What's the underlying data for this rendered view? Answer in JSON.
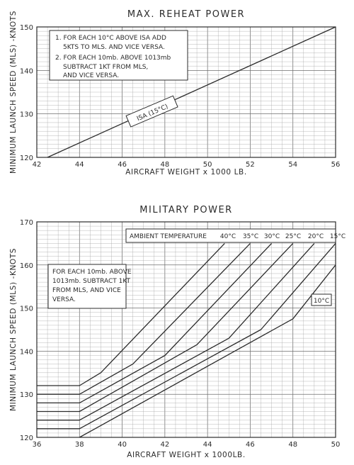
{
  "chart_data": [
    {
      "type": "line",
      "title": "MAX. REHEAT POWER",
      "xlabel": "AIRCRAFT WEIGHT x 1000 LB.",
      "ylabel": "MINIMUM LAUNCH SPEED (MLS) -KNOTS",
      "xlim": [
        42,
        56
      ],
      "ylim": [
        120,
        150
      ],
      "x_ticks": [
        "42",
        "44",
        "46",
        "48",
        "50",
        "52",
        "54",
        "56"
      ],
      "y_ticks": [
        "120",
        "130",
        "140",
        "150"
      ],
      "grid": true,
      "notes": [
        "1. FOR EACH 10°C ABOVE ISA ADD",
        "5KTS TO MLS. AND VICE VERSA.",
        "2. FOR EACH 10mb. ABOVE 1013mb",
        "SUBTRACT 1KT FROM MLS,",
        "AND VICE VERSA."
      ],
      "series": [
        {
          "name": "ISA (15°C)",
          "x": [
            42.5,
            56
          ],
          "y": [
            120,
            150
          ]
        }
      ]
    },
    {
      "type": "line",
      "title": "MILITARY POWER",
      "xlabel": "AIRCRAFT WEIGHT x 1000LB.",
      "ylabel": "MINIMUM LAUNCH SPEED (MLS) -KNOTS",
      "xlim": [
        36,
        50
      ],
      "ylim": [
        120,
        170
      ],
      "x_ticks": [
        "36",
        "38",
        "40",
        "42",
        "44",
        "46",
        "48",
        "50"
      ],
      "y_ticks": [
        "120",
        "130",
        "140",
        "150",
        "160",
        "170"
      ],
      "grid": true,
      "legend_title": "AMBIENT TEMPERATURE",
      "notes": [
        "FOR EACH 10mb. ABOVE",
        "1013mb. SUBTRACT 1KT",
        "FROM MLS, AND VICE",
        "VERSA."
      ],
      "series": [
        {
          "name": "40°C",
          "x": [
            36,
            38,
            39,
            44.8
          ],
          "y": [
            132,
            132,
            135,
            165
          ]
        },
        {
          "name": "35°C",
          "x": [
            36,
            38,
            40.5,
            46
          ],
          "y": [
            130,
            130,
            137,
            165
          ]
        },
        {
          "name": "30°C",
          "x": [
            36,
            38,
            42,
            47
          ],
          "y": [
            128,
            128,
            139,
            165
          ]
        },
        {
          "name": "25°C",
          "x": [
            36,
            38,
            43.5,
            48
          ],
          "y": [
            126,
            126,
            141.5,
            165
          ]
        },
        {
          "name": "20°C",
          "x": [
            36,
            38,
            45,
            49
          ],
          "y": [
            124,
            124,
            143,
            165
          ]
        },
        {
          "name": "15°C",
          "x": [
            36,
            38,
            46.5,
            50
          ],
          "y": [
            122,
            122,
            145,
            165
          ]
        },
        {
          "name": "10°C",
          "x": [
            38,
            48,
            50
          ],
          "y": [
            120,
            147.5,
            160
          ]
        }
      ]
    }
  ]
}
